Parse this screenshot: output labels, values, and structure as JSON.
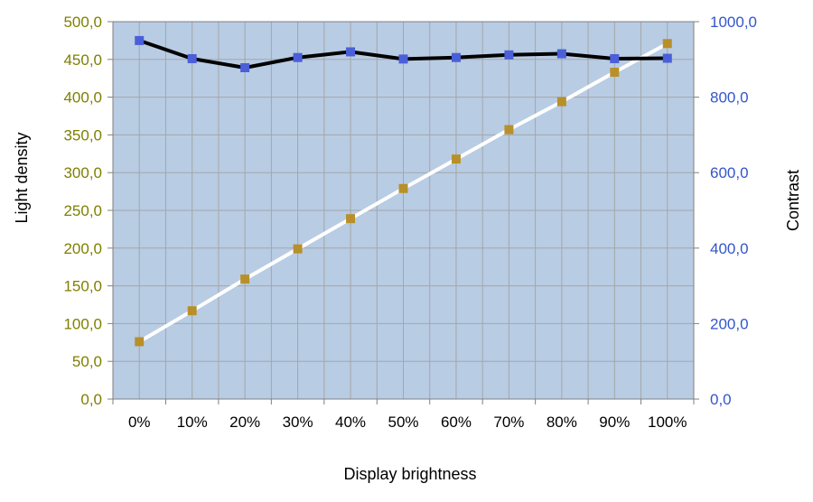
{
  "chart_data": {
    "type": "line",
    "xlabel": "Display brightness",
    "ylabel_left": "Light density",
    "ylabel_right": "Contrast",
    "categories": [
      "0%",
      "10%",
      "20%",
      "30%",
      "40%",
      "50%",
      "60%",
      "70%",
      "80%",
      "90%",
      "100%"
    ],
    "y_left": {
      "lim": [
        0,
        500
      ],
      "ticks": [
        "0,0",
        "50,0",
        "100,0",
        "150,0",
        "200,0",
        "250,0",
        "300,0",
        "350,0",
        "400,0",
        "450,0",
        "500,0"
      ],
      "tick_values": [
        0,
        50,
        100,
        150,
        200,
        250,
        300,
        350,
        400,
        450,
        500
      ],
      "color": "#7f7f00"
    },
    "y_right": {
      "lim": [
        0,
        1000
      ],
      "ticks": [
        "0,0",
        "200,0",
        "400,0",
        "600,0",
        "800,0",
        "1000,0"
      ],
      "tick_values": [
        0,
        200,
        400,
        600,
        800,
        1000
      ],
      "color": "#3355cc"
    },
    "series": [
      {
        "axis": "left",
        "values": [
          76,
          117,
          159,
          199,
          239,
          279,
          318,
          357,
          394,
          433,
          471
        ],
        "line_color": "#ffffff",
        "marker_color": "#b8902a"
      },
      {
        "axis": "right",
        "values": [
          950,
          902,
          878,
          905,
          920,
          901,
          905,
          912,
          915,
          902,
          903
        ],
        "line_color": "#000000",
        "marker_color": "#4a5fd8"
      }
    ],
    "grid": true,
    "plot_background": "#b8cce4",
    "legend": "none"
  }
}
